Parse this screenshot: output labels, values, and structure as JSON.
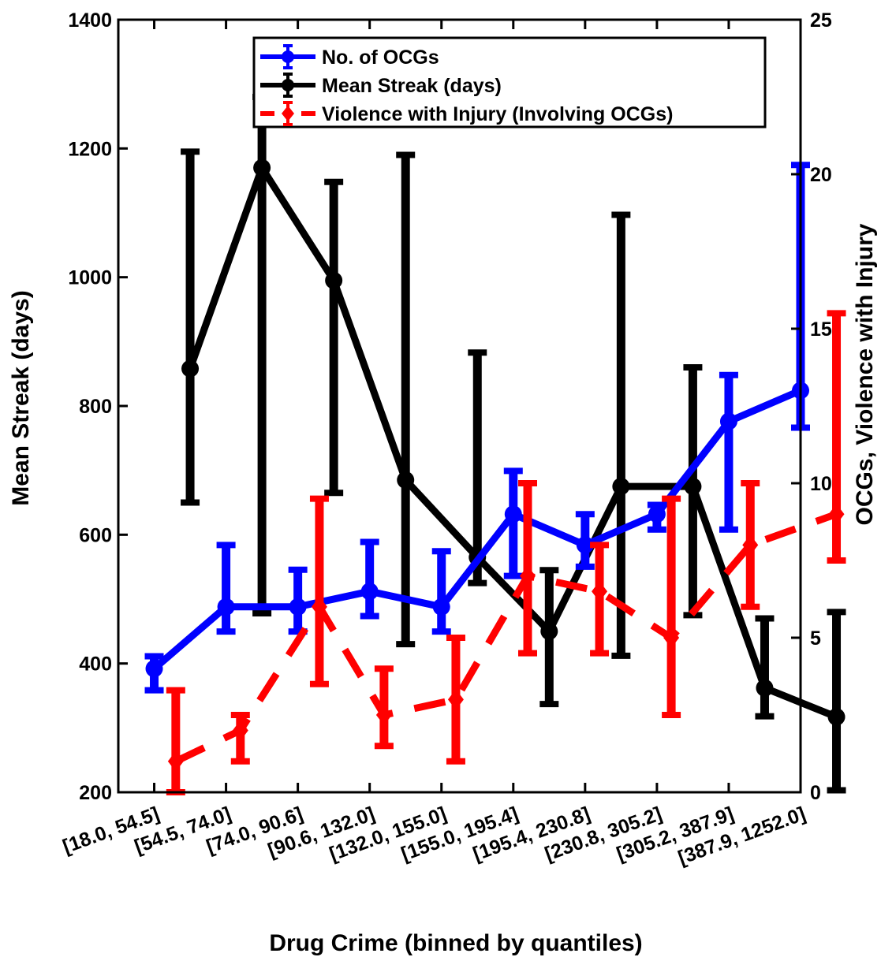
{
  "chart_data": {
    "type": "line",
    "title": "",
    "xlabel": "Drug Crime (binned by quantiles)",
    "ylabel_left": "Mean Streak (days)",
    "ylabel_right": "OCGs, Violence with Injury",
    "categories": [
      "[18.0, 54.5]",
      "[54.5, 74.0]",
      "[74.0, 90.6]",
      "[90.6, 132.0]",
      "[132.0, 155.0]",
      "[155.0, 195.4]",
      "[195.4, 230.8]",
      "[230.8, 305.2]",
      "[305.2, 387.9]",
      "[387.9, 1252.0]"
    ],
    "ylim_left": [
      200,
      1400
    ],
    "ylim_right": [
      0,
      25
    ],
    "yticks_left": [
      200,
      400,
      600,
      800,
      1000,
      1200,
      1400
    ],
    "yticks_right": [
      0,
      5,
      10,
      15,
      20,
      25
    ],
    "grid": false,
    "legend_position": "top",
    "series": [
      {
        "name": "No. of OCGs",
        "axis": "right",
        "color": "#0000ff",
        "line_style": "solid",
        "marker": "circle",
        "x": [
          1,
          2,
          3,
          4,
          5,
          6,
          7,
          8,
          9,
          10
        ],
        "values": [
          4.0,
          6.0,
          6.0,
          6.5,
          6.0,
          9.0,
          8.0,
          9.0,
          12.0,
          13.0
        ],
        "err_low": [
          3.3,
          5.2,
          5.2,
          5.7,
          5.2,
          7.0,
          7.3,
          8.5,
          8.5,
          11.8
        ],
        "err_high": [
          4.4,
          8.0,
          7.2,
          8.1,
          7.8,
          10.4,
          9.0,
          9.3,
          13.5,
          20.3
        ]
      },
      {
        "name": "Mean Streak (days)",
        "axis": "left",
        "color": "#000000",
        "line_style": "solid",
        "marker": "circle",
        "x": [
          1.5,
          2.5,
          3.5,
          4.5,
          5.5,
          6.5,
          7.5,
          8.5,
          9.5,
          10.5
        ],
        "values": [
          858,
          1170,
          995,
          685,
          565,
          450,
          675,
          675,
          362,
          317
        ],
        "err_low": [
          650,
          478,
          665,
          430,
          525,
          337,
          412,
          475,
          318,
          203
        ],
        "err_high": [
          1195,
          1280,
          1148,
          1190,
          883,
          545,
          1097,
          860,
          470,
          480
        ]
      },
      {
        "name": "Violence with Injury (Involving OCGs)",
        "axis": "right",
        "color": "#ff0000",
        "line_style": "dashed",
        "marker": "diamond",
        "x": [
          1.3,
          2.2,
          3.3,
          4.2,
          5.2,
          6.2,
          7.2,
          8.2,
          9.3,
          10.5
        ],
        "values": [
          1.0,
          2.0,
          6.0,
          2.5,
          3.0,
          7.0,
          6.5,
          5.0,
          8.0,
          9.0
        ],
        "err_low": [
          0.0,
          1.0,
          3.5,
          1.5,
          1.0,
          4.5,
          4.5,
          2.5,
          6.0,
          7.5
        ],
        "err_high": [
          3.3,
          2.5,
          9.5,
          4.0,
          5.0,
          10.0,
          8.0,
          9.5,
          10.0,
          15.5
        ]
      }
    ]
  }
}
